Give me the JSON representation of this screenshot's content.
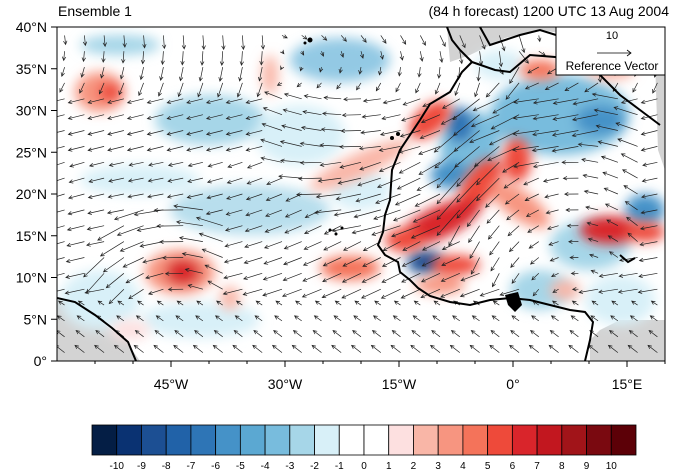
{
  "title": {
    "left": "Ensemble 1",
    "right": "(84 h forecast) 1200 UTC 13 Aug 2004"
  },
  "map": {
    "lat_range": [
      0,
      40
    ],
    "lon_range": [
      -60,
      20
    ],
    "lat_ticks": [
      {
        "value": 40,
        "label": "40°N"
      },
      {
        "value": 35,
        "label": "35°N"
      },
      {
        "value": 30,
        "label": "30°N"
      },
      {
        "value": 25,
        "label": "25°N"
      },
      {
        "value": 20,
        "label": "20°N"
      },
      {
        "value": 15,
        "label": "15°N"
      },
      {
        "value": 10,
        "label": "10°N"
      },
      {
        "value": 5,
        "label": "5°N"
      },
      {
        "value": 0,
        "label": "0°"
      }
    ],
    "lon_ticks": [
      {
        "value": -45,
        "label": "45°W"
      },
      {
        "value": -30,
        "label": "30°W"
      },
      {
        "value": -15,
        "label": "15°W"
      },
      {
        "value": 0,
        "label": "0°"
      },
      {
        "value": 15,
        "label": "15°E"
      }
    ],
    "land_color": "#d3d3d3",
    "coast_color": "#000000"
  },
  "reference_vector": {
    "magnitude": "10",
    "label": "Reference Vector"
  },
  "colorbar": {
    "labels": [
      "-10",
      "-9",
      "-8",
      "-7",
      "-6",
      "-5",
      "-4",
      "-3",
      "-2",
      "-1",
      "0",
      "1",
      "2",
      "3",
      "4",
      "5",
      "6",
      "7",
      "8",
      "9",
      "10"
    ],
    "colors": [
      "#041e45",
      "#0a3272",
      "#1c4f93",
      "#2162a8",
      "#2e75b6",
      "#4592c8",
      "#5ba8d2",
      "#78bcdd",
      "#a6d6e8",
      "#d8f0f8",
      "#ffffff",
      "#ffffff",
      "#fde0e0",
      "#f9b6a7",
      "#f79580",
      "#f4735a",
      "#ee4a3a",
      "#d9252b",
      "#c2171f",
      "#a11419",
      "#7a0910",
      "#5c0007"
    ]
  },
  "chart_data": {
    "type": "heatmap",
    "x": [
      -60,
      20
    ],
    "y": [
      0,
      40
    ],
    "xlabel": "",
    "ylabel": "",
    "levels": [
      -10,
      -9,
      -8,
      -7,
      -6,
      -5,
      -4,
      -3,
      -2,
      -1,
      0,
      1,
      2,
      3,
      4,
      5,
      6,
      7,
      8,
      9,
      10
    ],
    "features": [
      {
        "lon": -9,
        "lat": 16.5,
        "value": 6
      },
      {
        "lon": -5,
        "lat": 22,
        "value": 5
      },
      {
        "lon": 0,
        "lat": 22,
        "value": 6
      },
      {
        "lon": -11,
        "lat": 29,
        "value": 5
      },
      {
        "lon": 13,
        "lat": 17,
        "value": 7
      },
      {
        "lon": -45,
        "lat": 11,
        "value": 6
      },
      {
        "lon": -53,
        "lat": 33,
        "value": 5
      },
      {
        "lon": -21,
        "lat": 11.5,
        "value": 5
      },
      {
        "lon": -6,
        "lat": 12,
        "value": 5
      },
      {
        "lon": -7,
        "lat": 29,
        "value": -5
      },
      {
        "lon": -10.5,
        "lat": 12.5,
        "value": -6
      },
      {
        "lon": -4,
        "lat": 24,
        "value": -4
      },
      {
        "lon": 4,
        "lat": 31,
        "value": -4
      },
      {
        "lon": 17,
        "lat": 19,
        "value": -4
      }
    ]
  }
}
